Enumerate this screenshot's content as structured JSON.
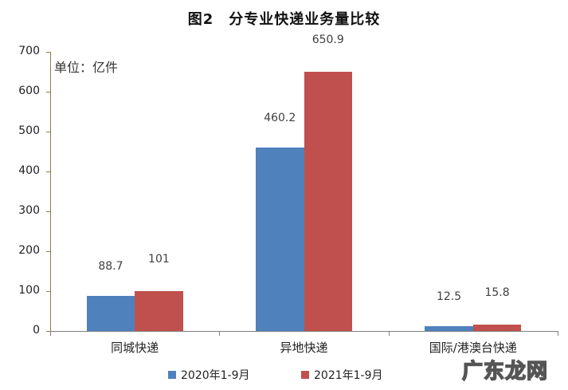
{
  "title": "图2　分专业快递业务量比较",
  "unit_label": "单位：亿件",
  "watermark": "广东龙网",
  "colors": {
    "series_2020": "#4f81bd",
    "series_2021": "#c0504d"
  },
  "legend": [
    {
      "label": "2020年1-9月",
      "color": "#4f81bd"
    },
    {
      "label": "2021年1-9月",
      "color": "#c0504d"
    }
  ],
  "y_ticks": [
    "0",
    "100",
    "200",
    "300",
    "400",
    "500",
    "600",
    "700"
  ],
  "categories": [
    "同城快递",
    "异地快递",
    "国际/港澳台快递"
  ],
  "value_labels": {
    "s2020": [
      "88.7",
      "460.2",
      "12.5"
    ],
    "s2021": [
      "101",
      "650.9",
      "15.8"
    ]
  },
  "chart_data": {
    "type": "bar",
    "title": "图2　分专业快递业务量比较",
    "xlabel": "",
    "ylabel": "单位：亿件",
    "ylim": [
      0,
      700
    ],
    "yticks": [
      0,
      100,
      200,
      300,
      400,
      500,
      600,
      700
    ],
    "grid": false,
    "legend_position": "bottom",
    "categories": [
      "同城快递",
      "异地快递",
      "国际/港澳台快递"
    ],
    "series": [
      {
        "name": "2020年1-9月",
        "color": "#4f81bd",
        "values": [
          88.7,
          460.2,
          12.5
        ]
      },
      {
        "name": "2021年1-9月",
        "color": "#c0504d",
        "values": [
          101,
          650.9,
          15.8
        ]
      }
    ]
  }
}
